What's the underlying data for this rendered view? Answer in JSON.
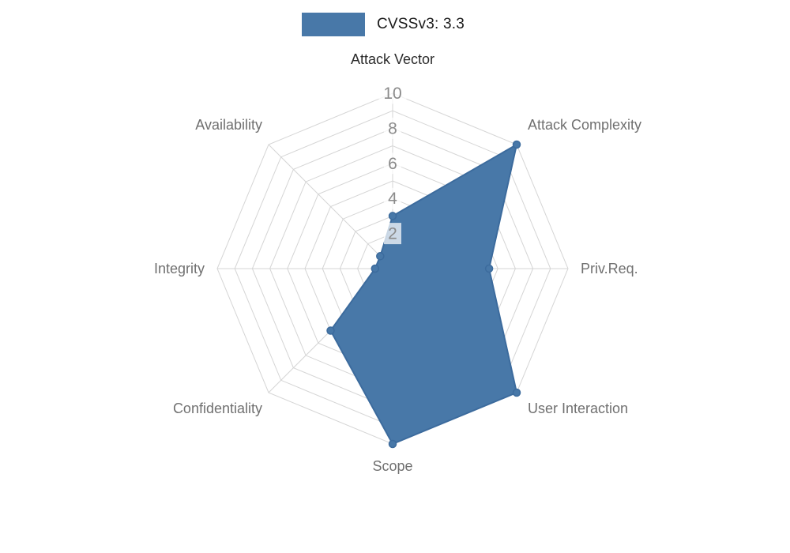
{
  "legend": {
    "label": "CVSSv3: 3.3",
    "swatch_color": "#4878a8"
  },
  "chart_data": {
    "type": "radar",
    "title": "CVSSv3: 3.3",
    "categories": [
      "Attack Vector",
      "Attack Complexity",
      "Priv.Req.",
      "User Interaction",
      "Scope",
      "Confidentiality",
      "Integrity",
      "Availability"
    ],
    "series": [
      {
        "name": "CVSSv3: 3.3",
        "values": [
          3,
          10,
          5.5,
          10,
          10,
          5,
          1,
          1
        ]
      }
    ],
    "rlim": [
      0,
      10
    ],
    "rticks": [
      2,
      4,
      6,
      8,
      10
    ],
    "grid": true,
    "grid_style": "spider-web",
    "legend_position": "top",
    "colors": {
      "fill": "#4878a8",
      "line": "#3c6b9d",
      "grid": "#d5d5d5",
      "label": "#707070",
      "axis_title": "#2b2b2b",
      "tick": "#8a8a8a",
      "tick_box": "#ffffff",
      "background": "#ffffff"
    }
  }
}
